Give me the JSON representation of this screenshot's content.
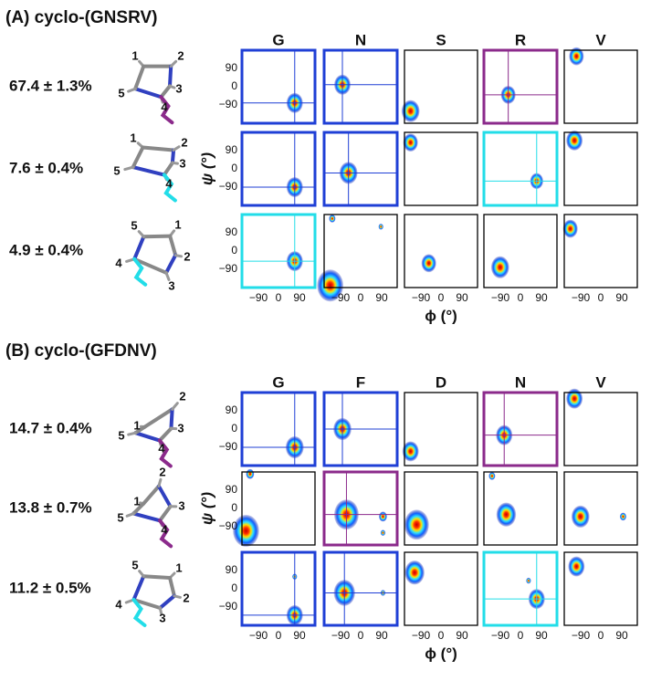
{
  "figure": {
    "panels": [
      {
        "label": "(A) cyclo-(GNSRV)",
        "residues": [
          "G",
          "N",
          "S",
          "R",
          "V"
        ],
        "rows": [
          {
            "population": "67.4 ± 1.3%",
            "atoms": [
              "1",
              "2",
              "3",
              "4",
              "5"
            ]
          },
          {
            "population": "7.6 ± 0.4%",
            "atoms": [
              "1",
              "2",
              "3",
              "4",
              "5"
            ]
          },
          {
            "population": "4.9 ± 0.4%",
            "atoms": [
              "1",
              "2",
              "3",
              "4",
              "5"
            ]
          }
        ]
      },
      {
        "label": "(B) cyclo-(GFDNV)",
        "residues": [
          "G",
          "F",
          "D",
          "N",
          "V"
        ],
        "rows": [
          {
            "population": "14.7 ± 0.4%",
            "atoms": [
              "1",
              "2",
              "3",
              "4",
              "5"
            ]
          },
          {
            "population": "13.8 ± 0.7%",
            "atoms": [
              "1",
              "2",
              "3",
              "4",
              "5"
            ]
          },
          {
            "population": "11.2 ± 0.5%",
            "atoms": [
              "1",
              "2",
              "3",
              "4",
              "5"
            ]
          }
        ]
      }
    ],
    "axes": {
      "xticks": [
        "−90",
        "0",
        "90"
      ],
      "yticks": [
        "90",
        "0",
        "−90"
      ],
      "xlabel": "ϕ (°)",
      "ylabel": "ψ (°)"
    }
  }
}
